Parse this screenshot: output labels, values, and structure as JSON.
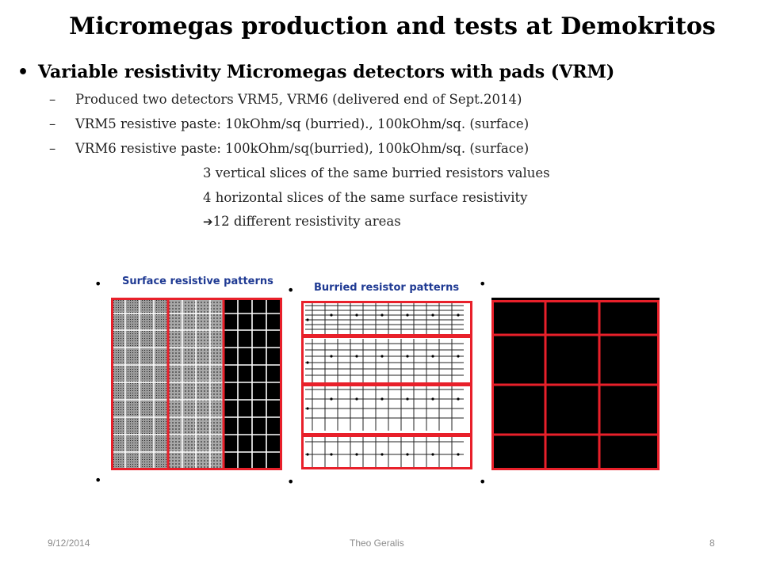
{
  "title": "Micromegas production and tests at Demokritos",
  "main_bullet": "Variable resistivity Micromegas detectors with pads (VRM)",
  "bullet_char": "•",
  "dash_char": "–",
  "arrow_char": "➔",
  "sub_bullets": [
    "Produced two detectors VRM5, VRM6 (delivered end of Sept.2014)",
    "VRM5 resistive paste: 10kOhm/sq (burried)., 100kOhm/sq. (surface)",
    "VRM6 resistive paste: 100kOhm/sq(burried), 100kOhm/sq. (surface)"
  ],
  "notes": [
    "3 vertical slices of the same burried resistors values",
    "4 horizontal slices of the same surface resistivity",
    "12 different resistivity areas"
  ],
  "figure_labels": {
    "surface": "Surface resistive patterns",
    "burried": "Burried resistor patterns"
  },
  "colors": {
    "highlight": "#e8202a",
    "label": "#1f3a93"
  },
  "footer": {
    "date": "9/12/2014",
    "author": "Theo Geralis",
    "page": "8"
  }
}
